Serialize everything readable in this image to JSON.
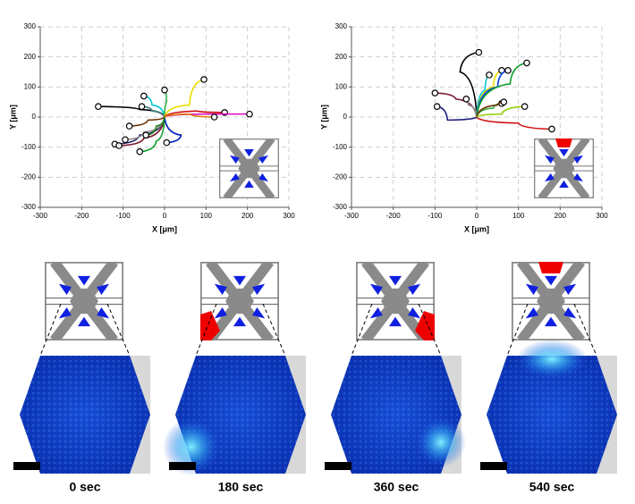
{
  "chart_data": [
    {
      "type": "trajectory",
      "xlabel": "X [μm]",
      "ylabel": "Y [μm]",
      "xlim": [
        -300,
        300
      ],
      "ylim": [
        -300,
        300
      ],
      "xticks": [
        -300,
        -200,
        -100,
        0,
        100,
        200,
        300
      ],
      "yticks": [
        -300,
        -200,
        -100,
        0,
        100,
        200,
        300
      ],
      "grid": true,
      "series": [
        {
          "color": "#000000",
          "x": [
            0,
            -60,
            -160
          ],
          "y": [
            0,
            25,
            35
          ]
        },
        {
          "color": "#00c8d8",
          "x": [
            0,
            -30,
            -50
          ],
          "y": [
            0,
            40,
            70
          ]
        },
        {
          "color": "#3a8080",
          "x": [
            0,
            -30,
            -55
          ],
          "y": [
            0,
            20,
            35
          ]
        },
        {
          "color": "#202060",
          "x": [
            0,
            -60,
            -120
          ],
          "y": [
            0,
            -60,
            -90
          ]
        },
        {
          "color": "#7a1a30",
          "x": [
            0,
            -50,
            -110
          ],
          "y": [
            0,
            -70,
            -95
          ]
        },
        {
          "color": "#909090",
          "x": [
            0,
            -50,
            -95
          ],
          "y": [
            0,
            -50,
            -75
          ]
        },
        {
          "color": "#6a3000",
          "x": [
            0,
            -40,
            -85
          ],
          "y": [
            0,
            -10,
            -30
          ]
        },
        {
          "color": "#10a030",
          "x": [
            0,
            -20,
            -60
          ],
          "y": [
            0,
            -80,
            -115
          ]
        },
        {
          "color": "#30b040",
          "x": [
            0,
            5,
            0
          ],
          "y": [
            0,
            50,
            90
          ]
        },
        {
          "color": "#e8e000",
          "x": [
            0,
            60,
            95
          ],
          "y": [
            0,
            40,
            125
          ]
        },
        {
          "color": "#d01010",
          "x": [
            0,
            80,
            145
          ],
          "y": [
            0,
            20,
            15
          ]
        },
        {
          "color": "#e000c0",
          "x": [
            0,
            100,
            205
          ],
          "y": [
            0,
            10,
            10
          ]
        },
        {
          "color": "#e08000",
          "x": [
            0,
            60,
            120
          ],
          "y": [
            0,
            10,
            0
          ]
        },
        {
          "color": "#0020c0",
          "x": [
            0,
            40,
            5
          ],
          "y": [
            0,
            -60,
            -85
          ]
        },
        {
          "color": "#208020",
          "x": [
            0,
            -20,
            -45
          ],
          "y": [
            0,
            -30,
            -60
          ]
        }
      ]
    },
    {
      "type": "trajectory",
      "xlabel": "X [μm]",
      "ylabel": "Y [μm]",
      "xlim": [
        -300,
        300
      ],
      "ylim": [
        -300,
        300
      ],
      "xticks": [
        -300,
        -200,
        -100,
        0,
        100,
        200,
        300
      ],
      "yticks": [
        -300,
        -200,
        -100,
        0,
        100,
        200,
        300
      ],
      "grid": true,
      "series": [
        {
          "color": "#000000",
          "x": [
            0,
            -40,
            5
          ],
          "y": [
            0,
            150,
            215
          ]
        },
        {
          "color": "#7a1a30",
          "x": [
            0,
            -50,
            -100
          ],
          "y": [
            0,
            60,
            80
          ]
        },
        {
          "color": "#202080",
          "x": [
            0,
            -70,
            -95
          ],
          "y": [
            0,
            -10,
            35
          ]
        },
        {
          "color": "#909090",
          "x": [
            0,
            -20,
            -25
          ],
          "y": [
            0,
            40,
            60
          ]
        },
        {
          "color": "#00c8d8",
          "x": [
            0,
            20,
            30
          ],
          "y": [
            0,
            90,
            140
          ]
        },
        {
          "color": "#e8e000",
          "x": [
            0,
            40,
            60
          ],
          "y": [
            0,
            100,
            155
          ]
        },
        {
          "color": "#0040e0",
          "x": [
            0,
            50,
            75
          ],
          "y": [
            0,
            100,
            155
          ]
        },
        {
          "color": "#10a030",
          "x": [
            0,
            80,
            120
          ],
          "y": [
            0,
            110,
            180
          ]
        },
        {
          "color": "#30b040",
          "x": [
            0,
            40,
            60
          ],
          "y": [
            0,
            30,
            45
          ]
        },
        {
          "color": "#6a3000",
          "x": [
            0,
            50,
            65
          ],
          "y": [
            0,
            40,
            50
          ]
        },
        {
          "color": "#90d000",
          "x": [
            0,
            60,
            115
          ],
          "y": [
            0,
            10,
            35
          ]
        },
        {
          "color": "#d01010",
          "x": [
            0,
            100,
            180
          ],
          "y": [
            0,
            -20,
            -40
          ]
        }
      ]
    }
  ],
  "panels": [
    "0 sec",
    "180 sec",
    "360 sec",
    "540 sec"
  ]
}
